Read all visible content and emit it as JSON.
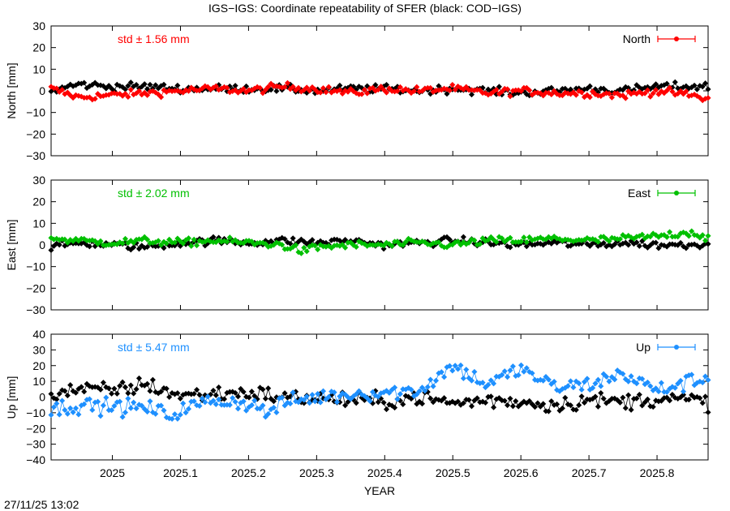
{
  "chart": {
    "title": "IGS−IGS: Coordinate repeatability of SFER (black: COD−IGS)",
    "xlabel": "YEAR",
    "footer_timestamp": "27/11/25 13:02",
    "xlim": [
      2024.91,
      2025.875
    ],
    "x_ticks": [
      {
        "value": 2025.0,
        "label": "2025"
      },
      {
        "value": 2025.1,
        "label": "2025.1"
      },
      {
        "value": 2025.2,
        "label": "2025.2"
      },
      {
        "value": 2025.3,
        "label": "2025.3"
      },
      {
        "value": 2025.4,
        "label": "2025.4"
      },
      {
        "value": 2025.5,
        "label": "2025.5"
      },
      {
        "value": 2025.6,
        "label": "2025.6"
      },
      {
        "value": 2025.7,
        "label": "2025.7"
      },
      {
        "value": 2025.8,
        "label": "2025.8"
      }
    ]
  },
  "chart_data": [
    {
      "type": "line",
      "component": "north",
      "ylabel": "North [mm]",
      "ylim": [
        -30,
        30
      ],
      "y_ticks": [
        {
          "value": 30,
          "label": "30"
        },
        {
          "value": 20,
          "label": "20"
        },
        {
          "value": 10,
          "label": "10"
        },
        {
          "value": 0,
          "label": "0"
        },
        {
          "value": -10,
          "label": "−10"
        },
        {
          "value": -20,
          "label": "−20"
        },
        {
          "value": -30,
          "label": "−30"
        }
      ],
      "std_text": "std ± 1.56 mm",
      "legend": "North",
      "color": "#ff0000",
      "reference_color": "#000000",
      "grid": false,
      "legend_position": "top-right",
      "series": [
        {
          "name": "North",
          "color": "#ff0000",
          "x": [
            2024.91,
            2024.95,
            2025.0,
            2025.05,
            2025.1,
            2025.15,
            2025.2,
            2025.25,
            2025.3,
            2025.35,
            2025.4,
            2025.45,
            2025.5,
            2025.55,
            2025.6,
            2025.65,
            2025.7,
            2025.75,
            2025.8,
            2025.85,
            2025.875
          ],
          "y": [
            1,
            -3,
            -2,
            -1,
            0,
            1,
            0,
            2,
            1,
            -1,
            1,
            0,
            1,
            -1,
            0,
            -1,
            -1,
            -2,
            0,
            -2,
            -4
          ]
        },
        {
          "name": "COD−IGS",
          "color": "#000000",
          "x": [
            2024.91,
            2024.95,
            2025.0,
            2025.05,
            2025.1,
            2025.15,
            2025.2,
            2025.25,
            2025.3,
            2025.35,
            2025.4,
            2025.45,
            2025.5,
            2025.55,
            2025.6,
            2025.65,
            2025.7,
            2025.75,
            2025.8,
            2025.85,
            2025.875
          ],
          "y": [
            0,
            3,
            2,
            2,
            1,
            1,
            1,
            1,
            0,
            1,
            1,
            0,
            1,
            0,
            -1,
            0,
            1,
            0,
            2,
            2,
            2
          ]
        }
      ]
    },
    {
      "type": "line",
      "component": "east",
      "ylabel": "East [mm]",
      "ylim": [
        -30,
        30
      ],
      "y_ticks": [
        {
          "value": 30,
          "label": "30"
        },
        {
          "value": 20,
          "label": "20"
        },
        {
          "value": 10,
          "label": "10"
        },
        {
          "value": 0,
          "label": "0"
        },
        {
          "value": -10,
          "label": "−10"
        },
        {
          "value": -20,
          "label": "−20"
        },
        {
          "value": -30,
          "label": "−30"
        }
      ],
      "std_text": "std ± 2.02 mm",
      "legend": "East",
      "color": "#00c000",
      "reference_color": "#000000",
      "grid": false,
      "legend_position": "top-right",
      "series": [
        {
          "name": "East",
          "color": "#00c000",
          "x": [
            2024.91,
            2024.95,
            2025.0,
            2025.05,
            2025.1,
            2025.15,
            2025.2,
            2025.25,
            2025.28,
            2025.3,
            2025.35,
            2025.4,
            2025.45,
            2025.5,
            2025.55,
            2025.6,
            2025.65,
            2025.7,
            2025.75,
            2025.8,
            2025.85,
            2025.875
          ],
          "y": [
            3,
            2,
            1,
            2,
            1,
            2,
            1,
            0,
            -3,
            -1,
            0,
            0,
            1,
            0,
            2,
            2,
            3,
            2,
            3,
            4,
            6,
            3
          ]
        },
        {
          "name": "COD−IGS",
          "color": "#000000",
          "x": [
            2024.91,
            2024.95,
            2025.0,
            2025.05,
            2025.1,
            2025.15,
            2025.2,
            2025.25,
            2025.3,
            2025.35,
            2025.4,
            2025.45,
            2025.5,
            2025.55,
            2025.6,
            2025.65,
            2025.7,
            2025.75,
            2025.8,
            2025.85,
            2025.875
          ],
          "y": [
            -1,
            1,
            0,
            -1,
            1,
            2,
            1,
            2,
            1,
            2,
            0,
            1,
            2,
            1,
            0,
            1,
            0,
            1,
            0,
            0,
            1
          ]
        }
      ]
    },
    {
      "type": "line",
      "component": "up",
      "ylabel": "Up [mm]",
      "ylim": [
        -40,
        40
      ],
      "y_ticks": [
        {
          "value": 40,
          "label": "40"
        },
        {
          "value": 30,
          "label": "30"
        },
        {
          "value": 20,
          "label": "20"
        },
        {
          "value": 10,
          "label": "10"
        },
        {
          "value": 0,
          "label": "0"
        },
        {
          "value": -10,
          "label": "−10"
        },
        {
          "value": -20,
          "label": "−20"
        },
        {
          "value": -30,
          "label": "−30"
        },
        {
          "value": -40,
          "label": "−40"
        }
      ],
      "std_text": "std ± 5.47 mm",
      "legend": "Up",
      "color": "#1e90ff",
      "reference_color": "#000000",
      "grid": false,
      "legend_position": "top-right",
      "series": [
        {
          "name": "Up",
          "color": "#1e90ff",
          "x": [
            2024.91,
            2024.95,
            2025.0,
            2025.05,
            2025.09,
            2025.1,
            2025.15,
            2025.2,
            2025.23,
            2025.25,
            2025.3,
            2025.35,
            2025.4,
            2025.45,
            2025.5,
            2025.55,
            2025.6,
            2025.65,
            2025.7,
            2025.75,
            2025.8,
            2025.85,
            2025.875
          ],
          "y": [
            -8,
            -5,
            -6,
            -7,
            -12,
            -8,
            -2,
            -4,
            -10,
            -4,
            0,
            2,
            3,
            4,
            20,
            8,
            18,
            6,
            8,
            15,
            4,
            10,
            12
          ]
        },
        {
          "name": "COD−IGS",
          "color": "#000000",
          "x": [
            2024.91,
            2024.95,
            2025.0,
            2025.05,
            2025.1,
            2025.15,
            2025.2,
            2025.25,
            2025.3,
            2025.35,
            2025.4,
            2025.45,
            2025.5,
            2025.55,
            2025.6,
            2025.65,
            2025.7,
            2025.75,
            2025.8,
            2025.85,
            2025.875
          ],
          "y": [
            2,
            5,
            4,
            8,
            1,
            2,
            3,
            0,
            -1,
            -2,
            -3,
            0,
            -4,
            -2,
            -3,
            -5,
            -2,
            -3,
            -1,
            -2,
            -3
          ]
        }
      ]
    }
  ]
}
